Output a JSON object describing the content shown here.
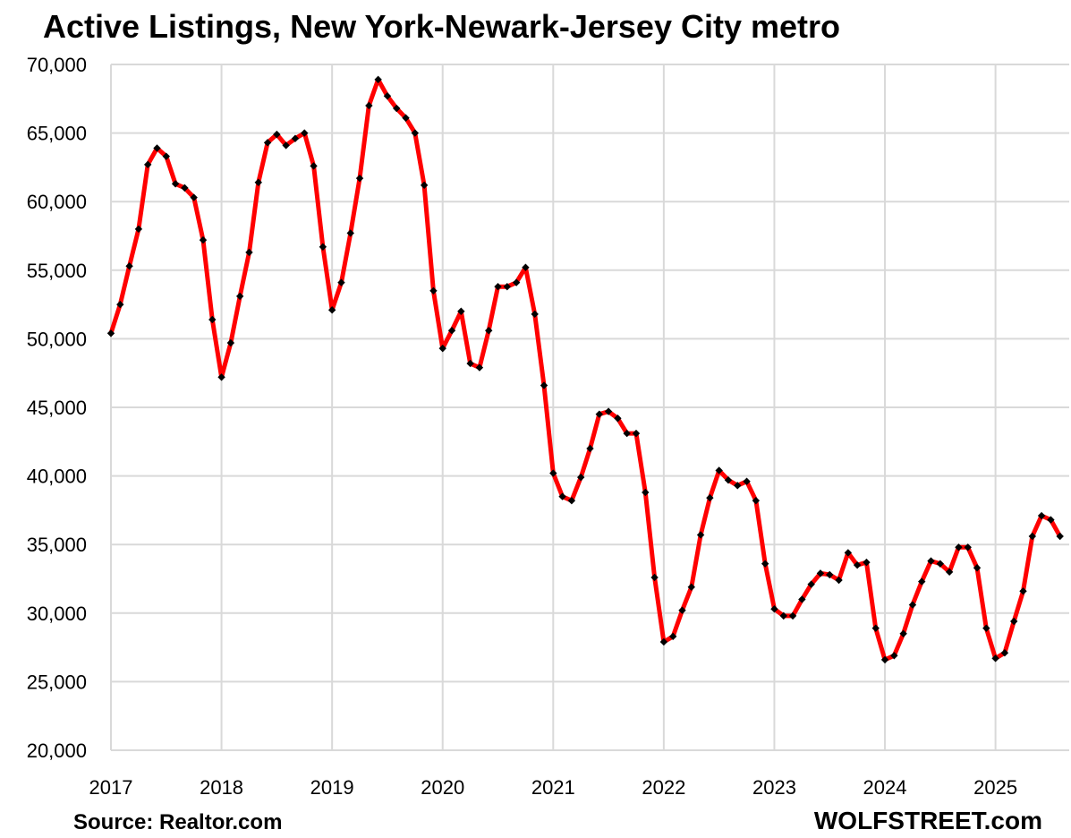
{
  "chart_data": {
    "type": "line",
    "title": "Active Listings, New York-Newark-Jersey City metro",
    "xlabel": "",
    "ylabel": "",
    "x_tick_labels": [
      "2017",
      "2018",
      "2019",
      "2020",
      "2021",
      "2022",
      "2023",
      "2024",
      "2025"
    ],
    "y_tick_labels": [
      "20,000",
      "25,000",
      "30,000",
      "35,000",
      "40,000",
      "45,000",
      "50,000",
      "55,000",
      "60,000",
      "65,000",
      "70,000"
    ],
    "ylim": [
      20000,
      70000
    ],
    "grid": true,
    "line_color": "#ff0000",
    "marker_color": "#000000",
    "series": [
      {
        "x": [
          "2017-01",
          "2017-02",
          "2017-03",
          "2017-04",
          "2017-05",
          "2017-06",
          "2017-07",
          "2017-08",
          "2017-09",
          "2017-10",
          "2017-11",
          "2017-12",
          "2018-01",
          "2018-02",
          "2018-03",
          "2018-04",
          "2018-05",
          "2018-06",
          "2018-07",
          "2018-08",
          "2018-09",
          "2018-10",
          "2018-11",
          "2018-12",
          "2019-01",
          "2019-02",
          "2019-03",
          "2019-04",
          "2019-05",
          "2019-06",
          "2019-07",
          "2019-08",
          "2019-09",
          "2019-10",
          "2019-11",
          "2019-12",
          "2020-01",
          "2020-02",
          "2020-03",
          "2020-04",
          "2020-05",
          "2020-06",
          "2020-07",
          "2020-08",
          "2020-09",
          "2020-10",
          "2020-11",
          "2020-12",
          "2021-01",
          "2021-02",
          "2021-03",
          "2021-04",
          "2021-05",
          "2021-06",
          "2021-07",
          "2021-08",
          "2021-09",
          "2021-10",
          "2021-11",
          "2021-12",
          "2022-01",
          "2022-02",
          "2022-03",
          "2022-04",
          "2022-05",
          "2022-06",
          "2022-07",
          "2022-08",
          "2022-09",
          "2022-10",
          "2022-11",
          "2022-12",
          "2023-01",
          "2023-02",
          "2023-03",
          "2023-04",
          "2023-05",
          "2023-06",
          "2023-07",
          "2023-08",
          "2023-09",
          "2023-10",
          "2023-11",
          "2023-12",
          "2024-01",
          "2024-02",
          "2024-03",
          "2024-04",
          "2024-05",
          "2024-06",
          "2024-07",
          "2024-08",
          "2024-09",
          "2024-10",
          "2024-11",
          "2024-12",
          "2025-01",
          "2025-02",
          "2025-03",
          "2025-04",
          "2025-05",
          "2025-06",
          "2025-07",
          "2025-08"
        ],
        "values": [
          50400,
          52500,
          55300,
          58000,
          62700,
          63900,
          63300,
          61300,
          61000,
          60300,
          57200,
          51400,
          47200,
          49700,
          53100,
          56300,
          61400,
          64300,
          64900,
          64100,
          64600,
          65000,
          62600,
          56700,
          52100,
          54100,
          57700,
          61700,
          67000,
          68900,
          67700,
          66800,
          66100,
          65000,
          61200,
          53500,
          49300,
          50600,
          52000,
          48200,
          47900,
          50600,
          53800,
          53800,
          54100,
          55200,
          51800,
          46600,
          40200,
          38500,
          38200,
          39900,
          42000,
          44500,
          44700,
          44200,
          43100,
          43100,
          38800,
          32600,
          27900,
          28300,
          30200,
          31900,
          35700,
          38400,
          40400,
          39700,
          39300,
          39600,
          38200,
          33600,
          30300,
          29800,
          29800,
          31000,
          32100,
          32900,
          32800,
          32400,
          34400,
          33500,
          33700,
          28900,
          26600,
          26900,
          28500,
          30600,
          32300,
          33800,
          33600,
          33000,
          34800,
          34800,
          33300,
          28900,
          26700,
          27100,
          29400,
          31600,
          35600,
          37100,
          36800,
          35600
        ]
      }
    ],
    "source_note": "Source: Realtor.com",
    "brand_note": "WOLFSTREET.com"
  }
}
